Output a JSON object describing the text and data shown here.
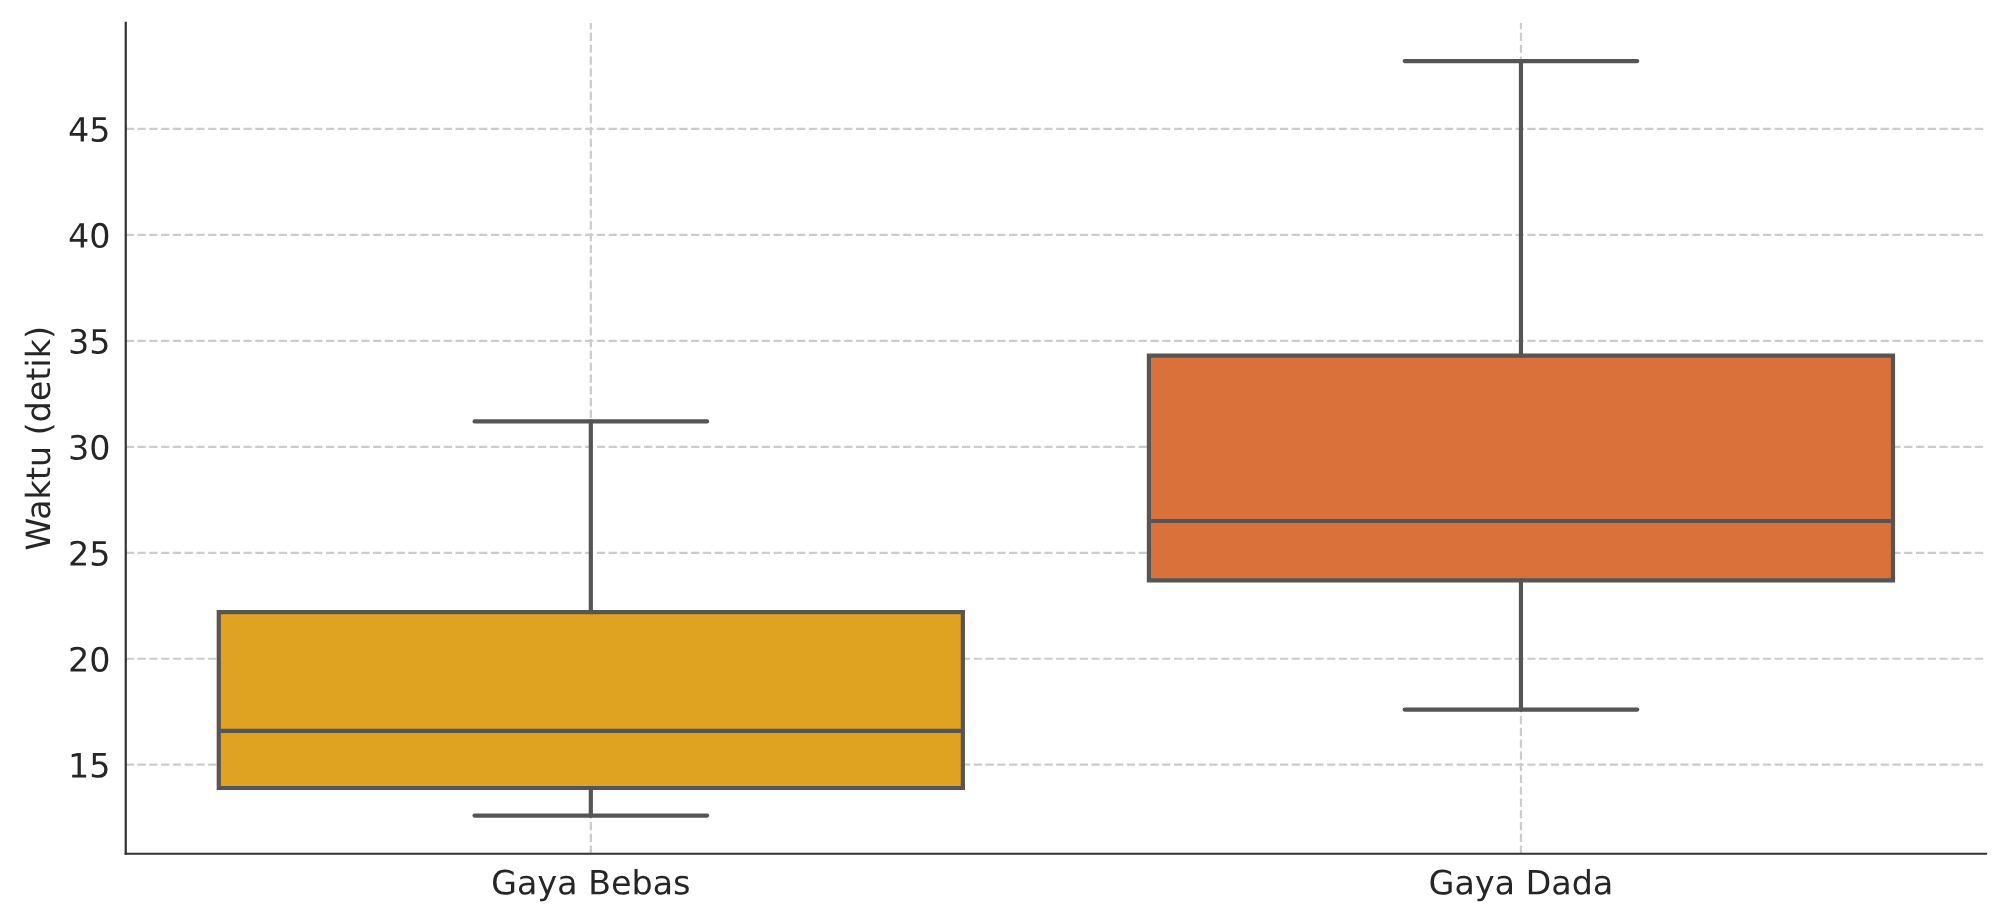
{
  "chart_data": {
    "type": "box",
    "ylabel": "Waktu (detik)",
    "categories": [
      "Gaya Bebas",
      "Gaya Dada"
    ],
    "boxes": [
      {
        "low": 12.6,
        "q1": 13.9,
        "median": 16.6,
        "q3": 22.2,
        "high": 31.2
      },
      {
        "low": 17.6,
        "q1": 23.7,
        "median": 26.5,
        "q3": 34.3,
        "high": 48.2
      }
    ],
    "colors": [
      "#e0a321",
      "#da713b"
    ],
    "ylim": [
      10.8,
      50
    ],
    "yticks": [
      15,
      20,
      25,
      30,
      35,
      40,
      45
    ],
    "grid": true
  }
}
